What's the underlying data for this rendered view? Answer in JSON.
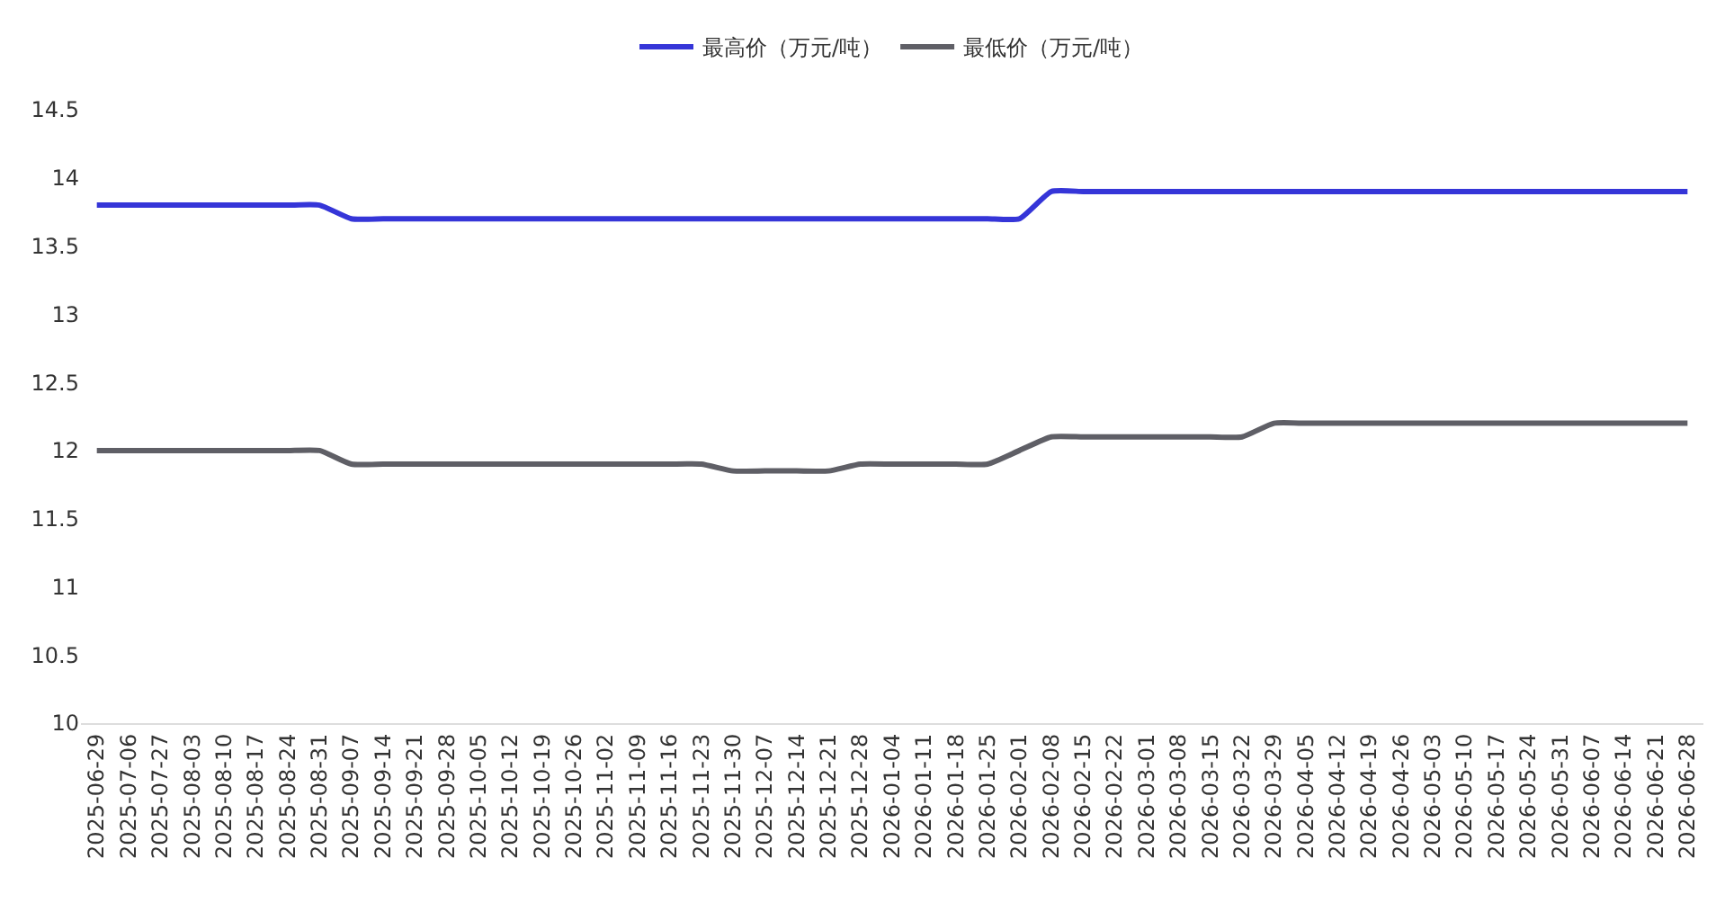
{
  "chart_data": {
    "type": "line",
    "categories": [
      "2025-06-29",
      "2025-07-06",
      "2025-07-27",
      "2025-08-03",
      "2025-08-10",
      "2025-08-17",
      "2025-08-24",
      "2025-08-31",
      "2025-09-07",
      "2025-09-14",
      "2025-09-21",
      "2025-09-28",
      "2025-10-05",
      "2025-10-12",
      "2025-10-19",
      "2025-10-26",
      "2025-11-02",
      "2025-11-09",
      "2025-11-16",
      "2025-11-23",
      "2025-11-30",
      "2025-12-07",
      "2025-12-14",
      "2025-12-21",
      "2025-12-28",
      "2026-01-04",
      "2026-01-11",
      "2026-01-18",
      "2026-01-25",
      "2026-02-01",
      "2026-02-08",
      "2026-02-15",
      "2026-02-22",
      "2026-03-01",
      "2026-03-08",
      "2026-03-15",
      "2026-03-22",
      "2026-03-29",
      "2026-04-05",
      "2026-04-12",
      "2026-04-19",
      "2026-04-26",
      "2026-05-03",
      "2026-05-10",
      "2026-05-17",
      "2026-05-24",
      "2026-05-31",
      "2026-06-07",
      "2026-06-14",
      "2026-06-21",
      "2026-06-28"
    ],
    "series": [
      {
        "name": "最高价（万元/吨）",
        "color": "#3535d8",
        "values": [
          13.8,
          13.8,
          13.8,
          13.8,
          13.8,
          13.8,
          13.8,
          13.8,
          13.7,
          13.7,
          13.7,
          13.7,
          13.7,
          13.7,
          13.7,
          13.7,
          13.7,
          13.7,
          13.7,
          13.7,
          13.7,
          13.7,
          13.7,
          13.7,
          13.7,
          13.7,
          13.7,
          13.7,
          13.7,
          13.7,
          13.9,
          13.9,
          13.9,
          13.9,
          13.9,
          13.9,
          13.9,
          13.9,
          13.9,
          13.9,
          13.9,
          13.9,
          13.9,
          13.9,
          13.9,
          13.9,
          13.9,
          13.9,
          13.9,
          13.9,
          13.9
        ]
      },
      {
        "name": "最低价（万元/吨）",
        "color": "#5f5f66",
        "values": [
          12.0,
          12.0,
          12.0,
          12.0,
          12.0,
          12.0,
          12.0,
          12.0,
          11.9,
          11.9,
          11.9,
          11.9,
          11.9,
          11.9,
          11.9,
          11.9,
          11.9,
          11.9,
          11.9,
          11.9,
          11.85,
          11.85,
          11.85,
          11.85,
          11.9,
          11.9,
          11.9,
          11.9,
          11.9,
          12.0,
          12.1,
          12.1,
          12.1,
          12.1,
          12.1,
          12.1,
          12.1,
          12.2,
          12.2,
          12.2,
          12.2,
          12.2,
          12.2,
          12.2,
          12.2,
          12.2,
          12.2,
          12.2,
          12.2,
          12.2,
          12.2
        ]
      }
    ],
    "ylim": [
      10,
      14.5
    ],
    "yticks": [
      10,
      10.5,
      11,
      11.5,
      12,
      12.5,
      13,
      13.5,
      14,
      14.5
    ],
    "legend": "top",
    "marker": "none",
    "line_style": "solid"
  }
}
